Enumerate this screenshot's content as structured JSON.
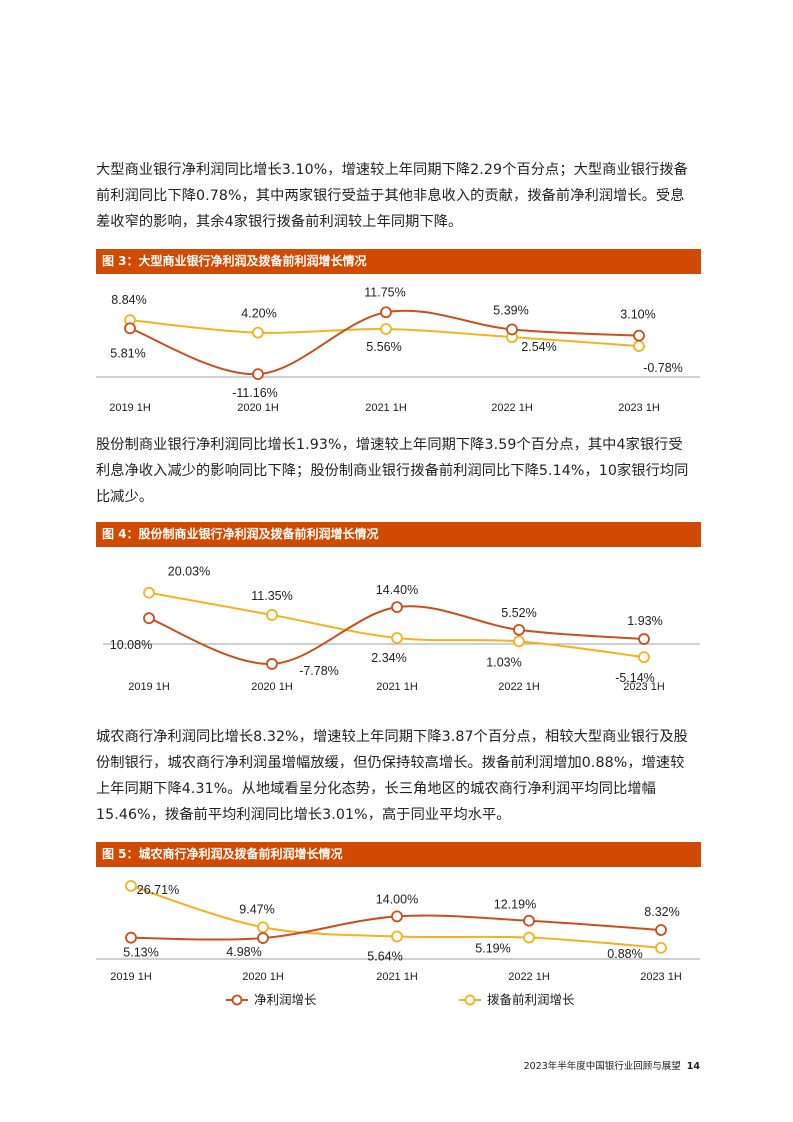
{
  "paragraphs": [
    [
      "大型商业银行净利润同比增长3.10%，增速较上年同期下降2.29个百分点；大型商业银行拨备",
      "前利润同比下降0.78%，其中两家银行受益于其他非息收入的贡献，拨备前净利润增长。受息",
      "差收窄的影响，其余4家银行拨备前利润较上年同期下降。"
    ],
    [
      "股份制商业银行净利润同比增长1.93%，增速较上年同期下降3.59个百分点，其中4家银行受",
      "利息净收入减少的影响同比下降；股份制商业银行拨备前利润同比下降5.14%，10家银行均同",
      "比减少。"
    ],
    [
      "城农商行净利润同比增长8.32%，增速较上年同期下降3.87个百分点，相较大型商业银行及股",
      "份制银行，城农商行净利润虽增幅放缓，但仍保持较高增长。拨备前利润增加0.88%，增速较",
      "上年同期下降4.31%。从地域看呈分化态势，长三角地区的城农商行净利润平均同比增幅",
      "15.46%，拨备前平均利润同比增长3.01%，高于同业平均水平。"
    ]
  ],
  "figures": [
    {
      "title": "图 3：大型商业银行净利润及拨备前利润增长情况"
    },
    {
      "title": "图 4：股份制商业银行净利润及拨备前利润增长情况"
    },
    {
      "title": "图 5：城农商行净利润及拨备前利润增长情况"
    }
  ],
  "legend": {
    "net_profit": "净利润增长",
    "pre_provision": "拨备前利润增长"
  },
  "footer": {
    "text": "2023年半年度中国银行业回顾与展望",
    "page": "14"
  },
  "colors": {
    "net_profit": "#c9501c",
    "pre_provision": "#f5b21e",
    "header_bar": "#d04a02"
  },
  "chart_data": [
    {
      "type": "line",
      "title": "图 3：大型商业银行净利润及拨备前利润增长情况",
      "categories": [
        "2019 1H",
        "2020 1H",
        "2021 1H",
        "2022 1H",
        "2023 1H"
      ],
      "series": [
        {
          "name": "净利润增长",
          "values": [
            5.81,
            -11.16,
            11.75,
            5.39,
            3.1
          ],
          "labels": [
            "5.81%",
            "-11.16%",
            "11.75%",
            "5.39%",
            "3.10%"
          ]
        },
        {
          "name": "拨备前利润增长",
          "values": [
            8.84,
            4.2,
            5.56,
            2.54,
            -0.78
          ],
          "labels": [
            "8.84%",
            "4.20%",
            "5.56%",
            "2.54%",
            "-0.78%"
          ]
        }
      ]
    },
    {
      "type": "line",
      "title": "图 4：股份制商业银行净利润及拨备前利润增长情况",
      "categories": [
        "2019 1H",
        "2020 1H",
        "2021 1H",
        "2022 1H",
        "2023 1H"
      ],
      "series": [
        {
          "name": "净利润增长",
          "values": [
            10.08,
            -7.78,
            14.4,
            5.52,
            1.93
          ],
          "labels": [
            "10.08%",
            "-7.78%",
            "14.40%",
            "5.52%",
            "1.93%"
          ]
        },
        {
          "name": "拨备前利润增长",
          "values": [
            20.03,
            11.35,
            2.34,
            1.03,
            -5.14
          ],
          "labels": [
            "20.03%",
            "11.35%",
            "2.34%",
            "1.03%",
            "-5.14%"
          ]
        }
      ]
    },
    {
      "type": "line",
      "title": "图 5：城农商行净利润及拨备前利润增长情况",
      "categories": [
        "2019 1H",
        "2020 1H",
        "2021 1H",
        "2022 1H",
        "2023 1H"
      ],
      "series": [
        {
          "name": "净利润增长",
          "values": [
            5.13,
            4.98,
            14.0,
            12.19,
            8.32
          ],
          "labels": [
            "5.13%",
            "4.98%",
            "14.00%",
            "12.19%",
            "8.32%"
          ]
        },
        {
          "name": "拨备前利润增长",
          "values": [
            26.71,
            9.47,
            5.64,
            5.19,
            0.88
          ],
          "labels": [
            "26.71%",
            "9.47%",
            "5.64%",
            "5.19%",
            "0.88%"
          ]
        }
      ],
      "legend": [
        "净利润增长",
        "拨备前利润增长"
      ]
    }
  ]
}
